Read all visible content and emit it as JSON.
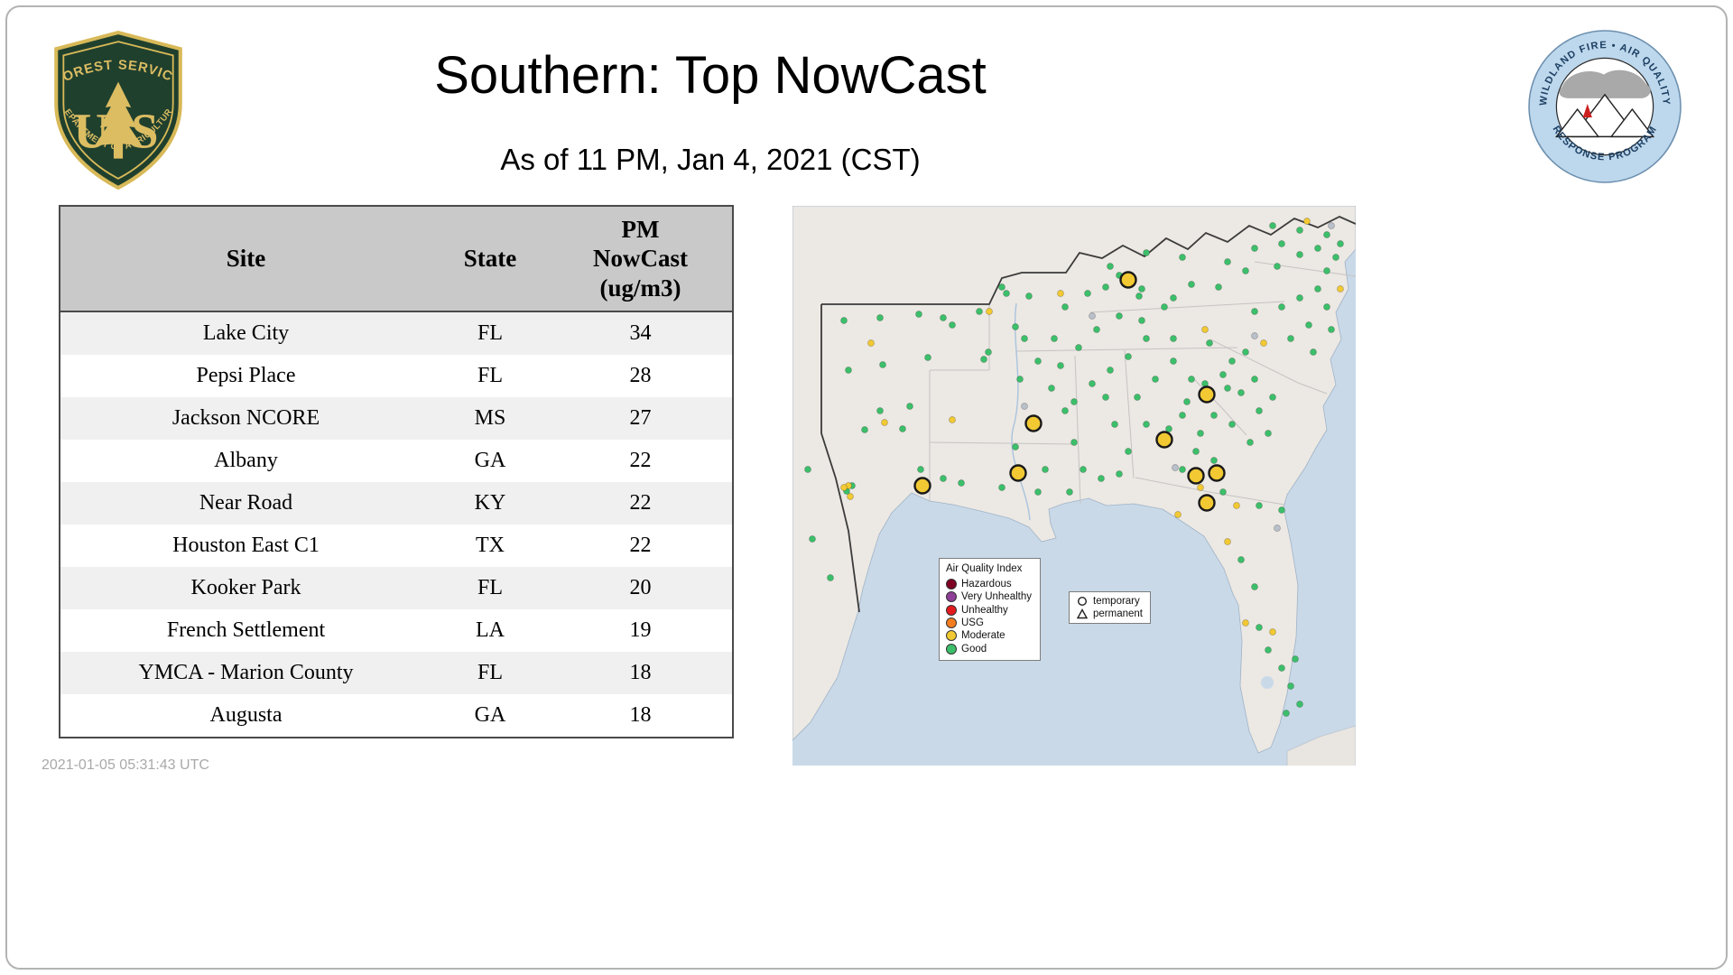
{
  "page": {
    "title": "Southern: Top NowCast",
    "subtitle": "As of 11 PM, Jan  4, 2021 (CST)",
    "timestamp": "2021-01-05 05:31:43 UTC"
  },
  "logos": {
    "forest_service": {
      "arc_top": "FOREST SERVICE",
      "letter_left": "U",
      "letter_right": "S",
      "arc_bottom": "DEPARTMENT OF AGRICULTURE"
    },
    "wfaqrp": {
      "arc_top": "WILDLAND FIRE • AIR QUALITY",
      "arc_bottom": "RESPONSE PROGRAM"
    }
  },
  "table": {
    "col_site": "Site",
    "col_state": "State",
    "col_pm": "PM\nNowCast\n(ug/m3)",
    "rows": [
      {
        "site": "Lake City",
        "state": "FL",
        "value": "34"
      },
      {
        "site": "Pepsi Place",
        "state": "FL",
        "value": "28"
      },
      {
        "site": "Jackson NCORE",
        "state": "MS",
        "value": "27"
      },
      {
        "site": "Albany",
        "state": "GA",
        "value": "22"
      },
      {
        "site": "Near Road",
        "state": "KY",
        "value": "22"
      },
      {
        "site": "Houston East C1",
        "state": "TX",
        "value": "22"
      },
      {
        "site": "Kooker Park",
        "state": "FL",
        "value": "20"
      },
      {
        "site": "French Settlement",
        "state": "LA",
        "value": "19"
      },
      {
        "site": "YMCA - Marion County",
        "state": "FL",
        "value": "18"
      },
      {
        "site": "Augusta",
        "state": "GA",
        "value": "18"
      }
    ]
  },
  "chart_data": {
    "type": "table",
    "title": "Southern: Top NowCast",
    "subtitle": "As of 11 PM, Jan  4, 2021 (CST)",
    "columns": [
      "Site",
      "State",
      "PM NowCast (ug/m3)"
    ],
    "rows": [
      [
        "Lake City",
        "FL",
        34
      ],
      [
        "Pepsi Place",
        "FL",
        28
      ],
      [
        "Jackson NCORE",
        "MS",
        27
      ],
      [
        "Albany",
        "GA",
        22
      ],
      [
        "Near Road",
        "KY",
        22
      ],
      [
        "Houston East C1",
        "TX",
        22
      ],
      [
        "Kooker Park",
        "FL",
        20
      ],
      [
        "French Settlement",
        "LA",
        19
      ],
      [
        "YMCA - Marion County",
        "FL",
        18
      ],
      [
        "Augusta",
        "GA",
        18
      ]
    ]
  },
  "map": {
    "legend": {
      "title": "Air Quality Index",
      "entries": [
        {
          "label": "Hazardous",
          "color": "#7e0023"
        },
        {
          "label": "Very Unhealthy",
          "color": "#8f3f97"
        },
        {
          "label": "Unhealthy",
          "color": "#e31a1c"
        },
        {
          "label": "USG",
          "color": "#f47d1f"
        },
        {
          "label": "Moderate",
          "color": "#f2c932"
        },
        {
          "label": "Good",
          "color": "#3cbf6a"
        }
      ]
    },
    "marker_legend": [
      {
        "symbol": "circle",
        "label": "temporary"
      },
      {
        "symbol": "triangle",
        "label": "permanent"
      }
    ],
    "colors": {
      "good": "#3cbf6a",
      "moderate": "#f2c932",
      "other": "#b9c0c9",
      "temporary_fill": "#f2c932",
      "temporary_stroke": "#1a1a1a",
      "water": "#c9d9e8",
      "land": "#ece8e3"
    },
    "dots": {
      "good": [
        [
          57,
          127
        ],
        [
          97,
          124
        ],
        [
          140,
          120
        ],
        [
          167,
          124
        ],
        [
          62,
          182
        ],
        [
          100,
          176
        ],
        [
          150,
          168
        ],
        [
          212,
          170
        ],
        [
          97,
          227
        ],
        [
          122,
          247
        ],
        [
          142,
          292
        ],
        [
          167,
          302
        ],
        [
          60,
          316
        ],
        [
          22,
          369
        ],
        [
          42,
          412
        ],
        [
          17,
          292
        ],
        [
          80,
          248
        ],
        [
          130,
          222
        ],
        [
          187,
          307
        ],
        [
          232,
          312
        ],
        [
          272,
          317
        ],
        [
          247,
          267
        ],
        [
          280,
          292
        ],
        [
          217,
          162
        ],
        [
          247,
          134
        ],
        [
          290,
          147
        ],
        [
          302,
          112
        ],
        [
          262,
          100
        ],
        [
          232,
          90
        ],
        [
          287,
          202
        ],
        [
          302,
          227
        ],
        [
          312,
          262
        ],
        [
          322,
          292
        ],
        [
          347,
          212
        ],
        [
          357,
          242
        ],
        [
          372,
          272
        ],
        [
          382,
          212
        ],
        [
          392,
          242
        ],
        [
          327,
          97
        ],
        [
          347,
          90
        ],
        [
          384,
          100
        ],
        [
          422,
          102
        ],
        [
          442,
          87
        ],
        [
          472,
          90
        ],
        [
          352,
          67
        ],
        [
          392,
          52
        ],
        [
          432,
          57
        ],
        [
          482,
          62
        ],
        [
          512,
          47
        ],
        [
          542,
          42
        ],
        [
          562,
          54
        ],
        [
          582,
          47
        ],
        [
          537,
          67
        ],
        [
          502,
          72
        ],
        [
          402,
          192
        ],
        [
          422,
          172
        ],
        [
          442,
          192
        ],
        [
          432,
          232
        ],
        [
          452,
          252
        ],
        [
          467,
          232
        ],
        [
          482,
          202
        ],
        [
          487,
          172
        ],
        [
          422,
          147
        ],
        [
          462,
          152
        ],
        [
          502,
          162
        ],
        [
          512,
          192
        ],
        [
          532,
          212
        ],
        [
          512,
          117
        ],
        [
          542,
          112
        ],
        [
          562,
          102
        ],
        [
          582,
          92
        ],
        [
          592,
          112
        ],
        [
          572,
          132
        ],
        [
          552,
          147
        ],
        [
          577,
          162
        ],
        [
          592,
          72
        ],
        [
          602,
          57
        ],
        [
          597,
          137
        ],
        [
          532,
          22
        ],
        [
          562,
          27
        ],
        [
          592,
          32
        ],
        [
          607,
          42
        ],
        [
          432,
          292
        ],
        [
          477,
          317
        ],
        [
          517,
          332
        ],
        [
          542,
          337
        ],
        [
          497,
          392
        ],
        [
          512,
          422
        ],
        [
          517,
          467
        ],
        [
          527,
          492
        ],
        [
          542,
          512
        ],
        [
          552,
          532
        ],
        [
          562,
          552
        ],
        [
          547,
          562
        ],
        [
          557,
          502
        ],
        [
          467,
          282
        ],
        [
          447,
          272
        ],
        [
          342,
          302
        ],
        [
          362,
          297
        ],
        [
          307,
          317
        ],
        [
          237,
          97
        ],
        [
          207,
          117
        ],
        [
          177,
          132
        ],
        [
          257,
          147
        ],
        [
          272,
          172
        ],
        [
          252,
          192
        ],
        [
          297,
          177
        ],
        [
          317,
          157
        ],
        [
          337,
          137
        ],
        [
          362,
          122
        ],
        [
          387,
          127
        ],
        [
          412,
          112
        ],
        [
          372,
          167
        ],
        [
          392,
          147
        ],
        [
          352,
          182
        ],
        [
          332,
          197
        ],
        [
          312,
          217
        ],
        [
          417,
          247
        ],
        [
          437,
          217
        ],
        [
          457,
          197
        ],
        [
          477,
          187
        ],
        [
          497,
          207
        ],
        [
          517,
          227
        ],
        [
          527,
          252
        ],
        [
          507,
          262
        ],
        [
          487,
          242
        ],
        [
          362,
          77
        ],
        [
          387,
          92
        ],
        [
          66,
          310
        ]
      ],
      "moderate": [
        [
          87,
          152
        ],
        [
          102,
          240
        ],
        [
          177,
          237
        ],
        [
          218,
          117
        ],
        [
          62,
          310
        ],
        [
          64,
          322
        ],
        [
          57,
          312
        ],
        [
          522,
          152
        ],
        [
          607,
          92
        ],
        [
          570,
          17
        ],
        [
          452,
          312
        ],
        [
          492,
          332
        ],
        [
          482,
          372
        ],
        [
          502,
          462
        ],
        [
          532,
          472
        ],
        [
          457,
          137
        ],
        [
          297,
          97
        ],
        [
          427,
          342
        ]
      ],
      "other": [
        [
          512,
          144
        ],
        [
          424,
          290
        ],
        [
          332,
          122
        ],
        [
          257,
          222
        ],
        [
          537,
          357
        ],
        [
          597,
          22
        ]
      ],
      "temporary": [
        [
          372,
          82
        ],
        [
          459,
          209
        ],
        [
          412,
          259
        ],
        [
          267,
          241
        ],
        [
          144,
          310
        ],
        [
          250,
          296
        ],
        [
          447,
          299
        ],
        [
          470,
          296
        ],
        [
          459,
          329
        ]
      ]
    }
  }
}
